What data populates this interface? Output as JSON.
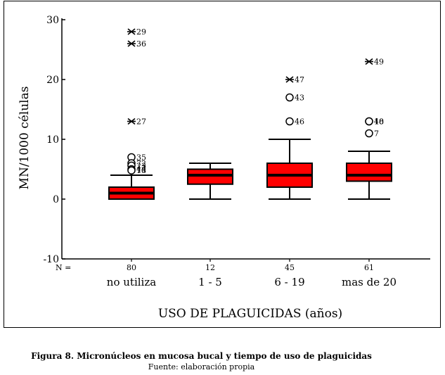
{
  "chart_data": {
    "type": "box",
    "ylabel": "MN/1000 células",
    "xlabel": "USO DE PLAGUICIDAS (años)",
    "ylim": [
      -10,
      30
    ],
    "yticks": [
      -10,
      0,
      10,
      20,
      30
    ],
    "n_label": "N =",
    "groups": [
      {
        "label": "no utiliza",
        "n": "80",
        "q1": 0,
        "median": 1,
        "q3": 2,
        "whisker_low": 0,
        "whisker_high": 4,
        "outliers": [
          {
            "value": 7,
            "marker": "circle",
            "label": "35"
          },
          {
            "value": 6,
            "marker": "circle",
            "label": "72"
          },
          {
            "value": 5.6,
            "marker": "circle",
            "label": "23"
          },
          {
            "value": 5,
            "marker": "circle",
            "label": "44"
          },
          {
            "value": 4.8,
            "marker": "circle",
            "label": "18"
          },
          {
            "value": 13,
            "marker": "star",
            "label": "27"
          },
          {
            "value": 26,
            "marker": "star",
            "label": "36"
          },
          {
            "value": 28,
            "marker": "star",
            "label": "29"
          }
        ]
      },
      {
        "label": "1 - 5",
        "n": "12",
        "q1": 2.5,
        "median": 4,
        "q3": 5,
        "whisker_low": 0,
        "whisker_high": 6,
        "outliers": []
      },
      {
        "label": "6 - 19",
        "n": "45",
        "q1": 2,
        "median": 4,
        "q3": 6,
        "whisker_low": 0,
        "whisker_high": 10,
        "outliers": [
          {
            "value": 13,
            "marker": "circle",
            "label": "46"
          },
          {
            "value": 17,
            "marker": "circle",
            "label": "43"
          },
          {
            "value": 20,
            "marker": "star",
            "label": "47"
          }
        ]
      },
      {
        "label": "mas de 20",
        "n": "61",
        "q1": 3,
        "median": 4,
        "q3": 6,
        "whisker_low": 0,
        "whisker_high": 8,
        "outliers": [
          {
            "value": 11,
            "marker": "circle",
            "label": "7"
          },
          {
            "value": 13,
            "marker": "circle",
            "label": "48"
          },
          {
            "value": 13,
            "marker": "circle",
            "label": "10"
          },
          {
            "value": 23,
            "marker": "star",
            "label": "49"
          }
        ]
      }
    ],
    "colors": {
      "box_fill": "#ff0000",
      "stroke": "#000000"
    }
  },
  "caption": {
    "figure": "Figura 8. Micronúcleos en mucosa bucal y tiempo de uso de plaguicidas",
    "source": "Fuente: elaboración propia"
  }
}
